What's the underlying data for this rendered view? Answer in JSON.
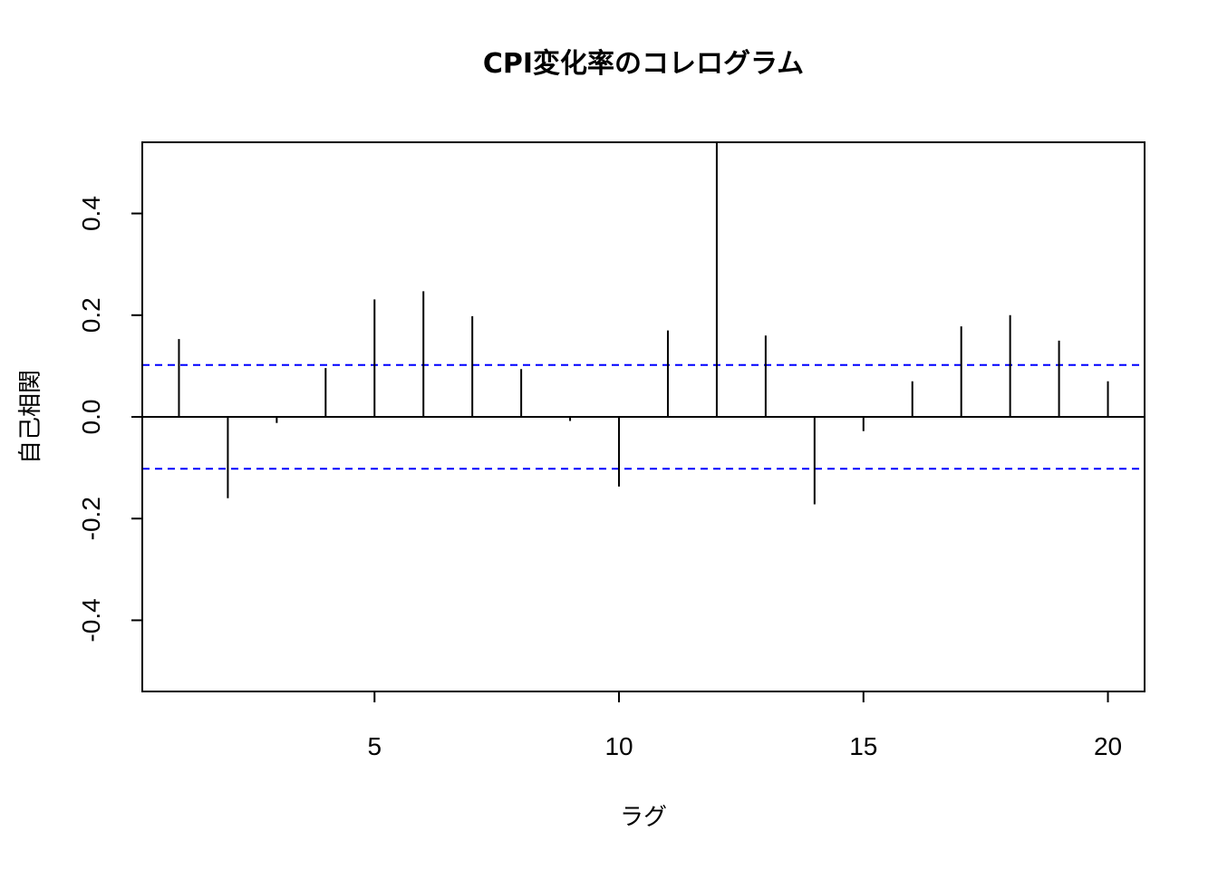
{
  "chart_data": {
    "type": "bar",
    "title": "CPI変化率のコレログラム",
    "xlabel": "ラグ",
    "ylabel": "自己相関",
    "x_ticks": [
      5,
      10,
      15,
      20
    ],
    "y_ticks": [
      "-0.4",
      "-0.2",
      "0.0",
      "0.2",
      "0.4"
    ],
    "xlim": [
      0.25,
      20.75
    ],
    "ylim": [
      -0.54,
      0.54
    ],
    "lags": [
      1,
      2,
      3,
      4,
      5,
      6,
      7,
      8,
      9,
      10,
      11,
      12,
      13,
      14,
      15,
      16,
      17,
      18,
      19,
      20
    ],
    "values": [
      0.153,
      -0.16,
      -0.012,
      0.096,
      0.231,
      0.247,
      0.198,
      0.094,
      -0.008,
      -0.137,
      0.17,
      0.54,
      0.16,
      -0.172,
      -0.028,
      0.07,
      0.178,
      0.2,
      0.15,
      0.07
    ],
    "confidence_bound": 0.102,
    "grid": false,
    "colors": {
      "stem": "#000000",
      "bound": "#0000ff",
      "zero_line": "#000000"
    }
  }
}
